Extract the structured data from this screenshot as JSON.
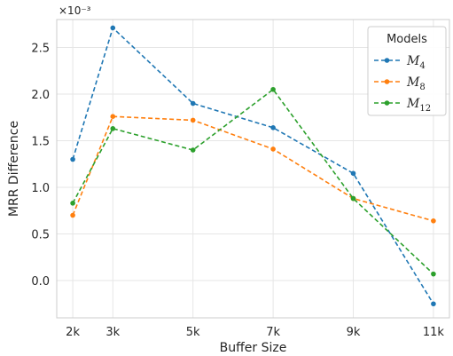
{
  "chart_data": {
    "type": "line",
    "xlabel": "Buffer Size",
    "ylabel": "MRR Difference",
    "offset_label": "×10⁻³",
    "x_values": [
      2,
      3,
      5,
      7,
      9,
      11
    ],
    "x_tick_labels": [
      "2k",
      "3k",
      "5k",
      "7k",
      "9k",
      "11k"
    ],
    "y_ticks": [
      0.0,
      0.5,
      1.0,
      1.5,
      2.0,
      2.5
    ],
    "y_tick_labels": [
      "0.0",
      "0.5",
      "1.0",
      "1.5",
      "2.0",
      "2.5"
    ],
    "xlim": [
      1.6,
      11.4
    ],
    "ylim": [
      -0.4,
      2.8
    ],
    "grid": true,
    "legend_title": "Models",
    "legend_position": "top-right",
    "series": [
      {
        "name": "M",
        "subscript": "4",
        "color": "#1f77b4",
        "values": [
          1.3,
          2.71,
          1.9,
          1.64,
          1.15,
          -0.25
        ]
      },
      {
        "name": "M",
        "subscript": "8",
        "color": "#ff7f0e",
        "values": [
          0.7,
          1.76,
          1.72,
          1.41,
          0.88,
          0.64
        ]
      },
      {
        "name": "M",
        "subscript": "12",
        "color": "#2ca02c",
        "values": [
          0.83,
          1.63,
          1.4,
          2.05,
          0.88,
          0.07
        ]
      }
    ]
  }
}
